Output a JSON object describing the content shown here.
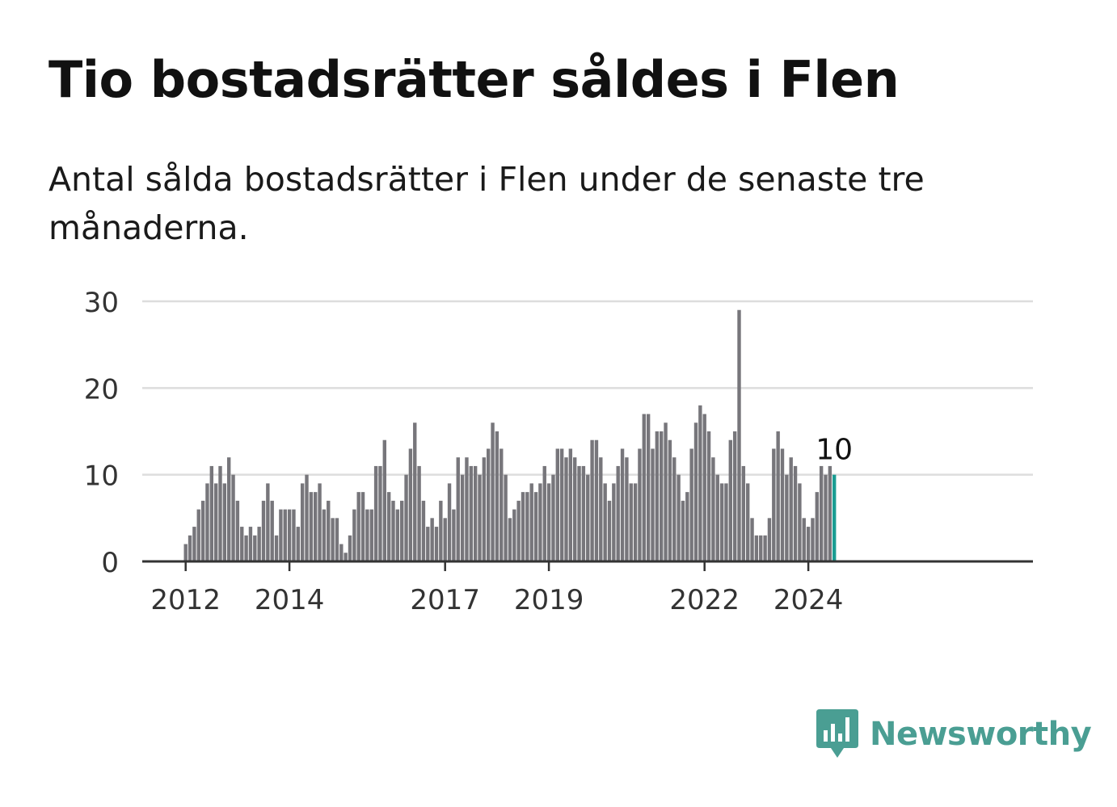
{
  "title": "Tio bostadsrätter såldes i Flen",
  "subtitle": "Antal sålda bostadsrätter i Flen under de senaste tre månaderna.",
  "brand": {
    "name": "Newsworthy",
    "color": "#4a9e93",
    "icon": "newsworthy-logo-icon"
  },
  "colors": {
    "bar": "#77767b",
    "highlight": "#1a9c92",
    "grid": "#dddddd",
    "axis": "#333333"
  },
  "chart_data": {
    "type": "bar",
    "title": "Tio bostadsrätter såldes i Flen",
    "xlabel": "",
    "ylabel": "",
    "ylim": [
      0,
      30
    ],
    "yticks": [
      0,
      10,
      20,
      30
    ],
    "grid": true,
    "x_ticks": [
      {
        "label": "2012",
        "index": 0
      },
      {
        "label": "2014",
        "index": 24
      },
      {
        "label": "2017",
        "index": 60
      },
      {
        "label": "2019",
        "index": 84
      },
      {
        "label": "2022",
        "index": 120
      },
      {
        "label": "2024",
        "index": 144
      }
    ],
    "start_label": "januari 2012",
    "values": [
      2,
      3,
      4,
      6,
      7,
      9,
      11,
      9,
      11,
      9,
      12,
      10,
      7,
      4,
      3,
      4,
      3,
      4,
      7,
      9,
      7,
      3,
      6,
      6,
      6,
      6,
      4,
      9,
      10,
      8,
      8,
      9,
      6,
      7,
      5,
      5,
      2,
      1,
      3,
      6,
      8,
      8,
      6,
      6,
      11,
      11,
      14,
      8,
      7,
      6,
      7,
      10,
      13,
      16,
      11,
      7,
      4,
      5,
      4,
      7,
      5,
      9,
      6,
      12,
      10,
      12,
      11,
      11,
      10,
      12,
      13,
      16,
      15,
      13,
      10,
      5,
      6,
      7,
      8,
      8,
      9,
      8,
      9,
      11,
      9,
      10,
      13,
      13,
      12,
      13,
      12,
      11,
      11,
      10,
      14,
      14,
      12,
      9,
      7,
      9,
      11,
      13,
      12,
      9,
      9,
      13,
      17,
      17,
      13,
      15,
      15,
      16,
      14,
      12,
      10,
      7,
      8,
      13,
      16,
      18,
      17,
      15,
      12,
      10,
      9,
      9,
      14,
      15,
      29,
      11,
      9,
      5,
      3,
      3,
      3,
      5,
      13,
      15,
      13,
      10,
      12,
      11,
      9,
      5,
      4,
      5,
      8,
      11,
      10,
      11,
      10
    ],
    "highlight_index": 150,
    "highlight_label": "10"
  }
}
